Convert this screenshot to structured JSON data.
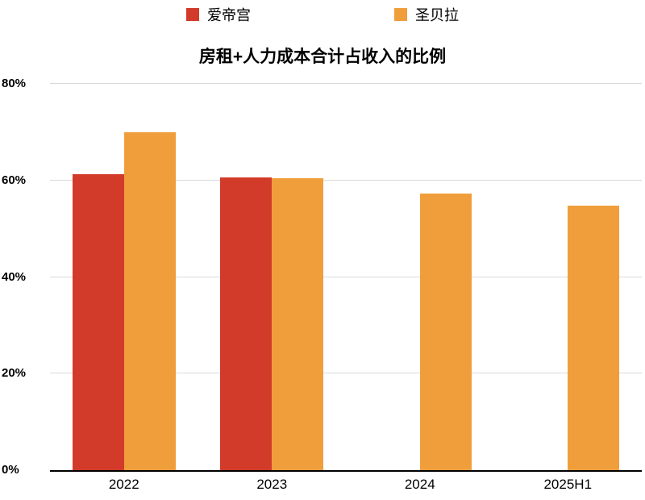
{
  "title": "房租+人力成本合计占收入的比例",
  "chart_data": {
    "type": "bar",
    "title": "房租+人力成本合计占收入的比例",
    "categories": [
      "2022",
      "2023",
      "2024",
      "2025H1"
    ],
    "series": [
      {
        "name": "爱帝宫",
        "color": "#d23b2a",
        "values": [
          61.3,
          60.7,
          null,
          null
        ]
      },
      {
        "name": "圣贝拉",
        "color": "#f09e3c",
        "values": [
          70.0,
          60.5,
          57.3,
          54.8
        ]
      }
    ],
    "ylim": [
      0,
      80
    ],
    "yticks": [
      {
        "value": 0,
        "label": "0%"
      },
      {
        "value": 20,
        "label": "20%"
      },
      {
        "value": 40,
        "label": "40%"
      },
      {
        "value": 60,
        "label": "60%"
      },
      {
        "value": 80,
        "label": "80%"
      }
    ],
    "grid": true,
    "legend_position": "top",
    "colors": {
      "axis": "#000000",
      "gridline": "#d9d9d9",
      "background": "#ffffff"
    }
  }
}
